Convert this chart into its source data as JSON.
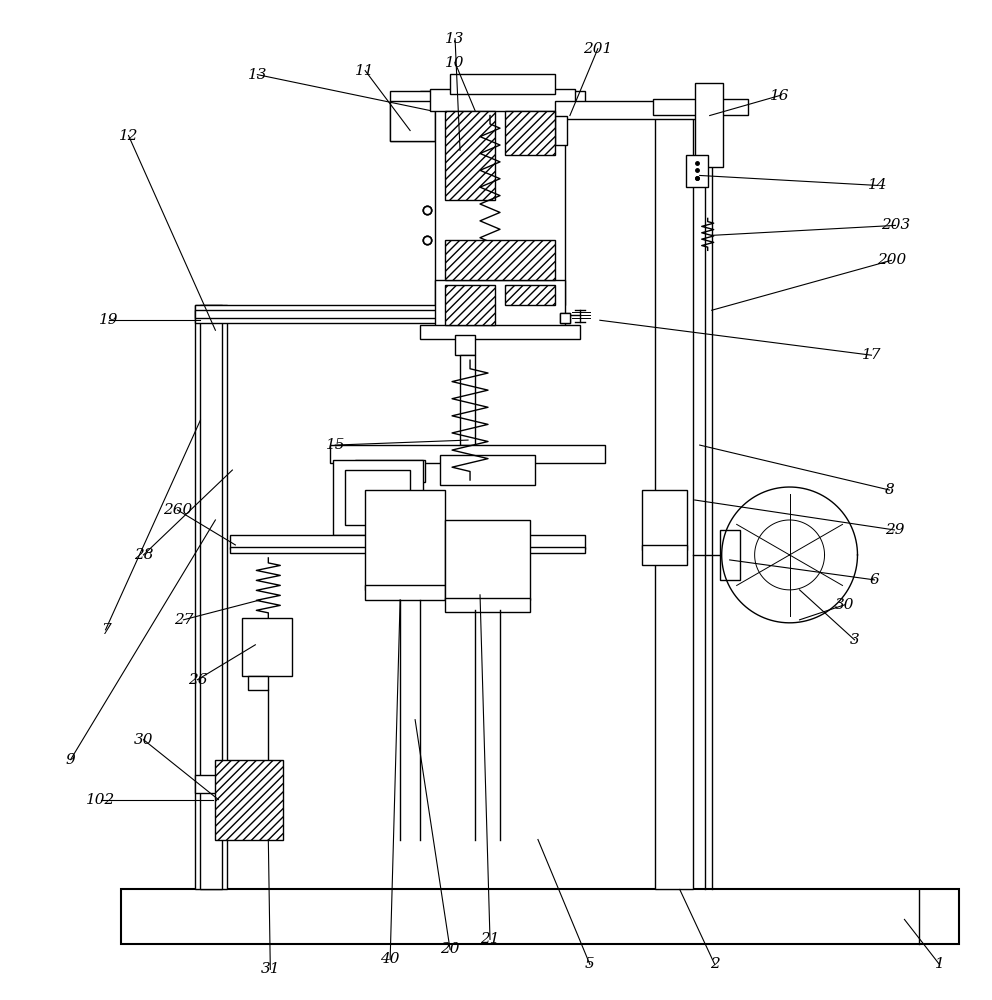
{
  "bg_color": "#ffffff",
  "line_color": "#000000",
  "fig_width": 9.92,
  "fig_height": 10.0,
  "lw": 1.0,
  "lw_thick": 1.5
}
